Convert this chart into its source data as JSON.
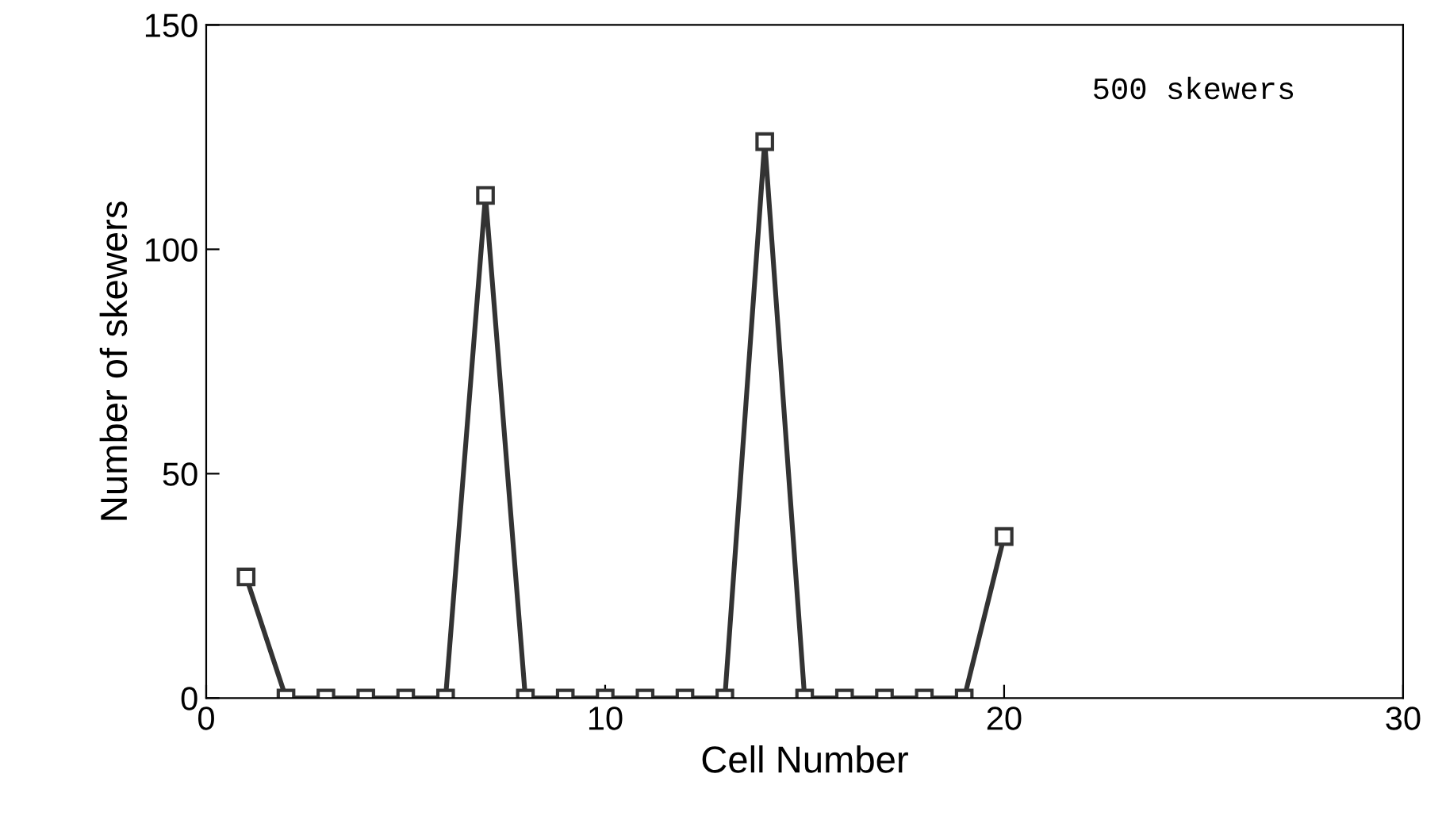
{
  "chart_data": {
    "type": "line",
    "xlabel": "Cell Number",
    "ylabel": "Number of skewers",
    "x": [
      1,
      2,
      3,
      4,
      5,
      6,
      7,
      8,
      9,
      10,
      11,
      12,
      13,
      14,
      15,
      16,
      17,
      18,
      19,
      20
    ],
    "series": [
      {
        "color": "#333333",
        "values": [
          27,
          0,
          0,
          0,
          0,
          0,
          112,
          0,
          0,
          0,
          0,
          0,
          0,
          124,
          0,
          0,
          0,
          0,
          0,
          36
        ]
      }
    ],
    "xlim": [
      0,
      30
    ],
    "xticks": [
      0,
      10,
      20,
      30
    ],
    "ylim": [
      0,
      150
    ],
    "yticks": [
      0,
      50,
      100,
      150
    ],
    "annotations": [
      "500 skewers"
    ],
    "marker": "square",
    "line_style": "solid",
    "grid": false,
    "legend": false
  }
}
